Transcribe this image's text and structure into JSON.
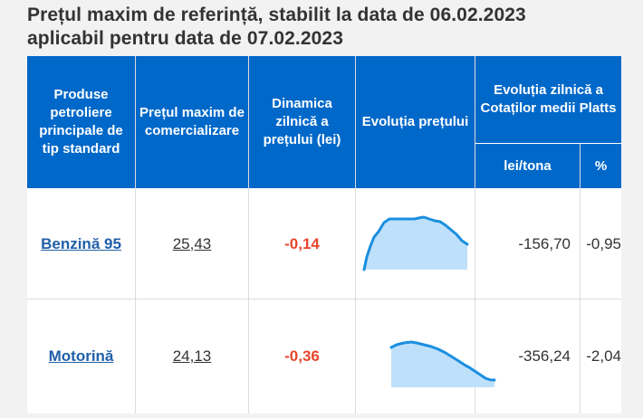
{
  "title": {
    "line1": "Prețul maxim de referință, stabilit la data de 06.02.2023",
    "line2": "aplicabil pentru data de 07.02.2023"
  },
  "headers": {
    "product": "Produse petroliere principale de tip standard",
    "max_price": "Prețul maxim de comercializare",
    "dynamics": "Dinamica zilnică a prețului (lei)",
    "evolution": "Evoluția prețului",
    "platts": "Evoluția zilnică a Cotaților medii Platts",
    "platts_lei": "lei/tona",
    "platts_pct": "%"
  },
  "rows": [
    {
      "product": "Benzină 95",
      "max_price": "25,43",
      "dynamics": "-0,14",
      "platts_lei": "-156,70",
      "platts_pct": "-0,95"
    },
    {
      "product": "Motorină",
      "max_price": "24,13",
      "dynamics": "-0,36",
      "platts_lei": "-356,24",
      "platts_pct": "-2,04"
    }
  ],
  "colors": {
    "header_bg": "#0068c9",
    "link": "#1f5fa8",
    "negative": "#e8452c",
    "sparkline": "#1a8fe0",
    "sparkline_fill": "#bfe0fb"
  }
}
